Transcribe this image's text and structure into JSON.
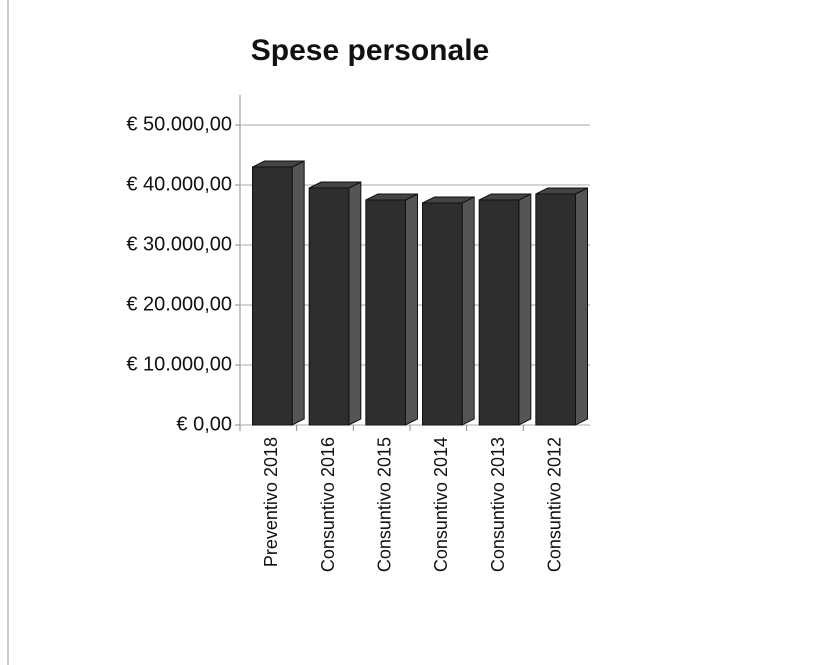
{
  "chart_data": {
    "type": "bar3d",
    "title": "Spese personale",
    "categories": [
      "Preventivo 2018",
      "Consuntivo 2016",
      "Consuntivo 2015",
      "Consuntivo 2014",
      "Consuntivo 2013",
      "Consuntivo 2012"
    ],
    "values": [
      43000,
      39500,
      37500,
      37000,
      37500,
      38500
    ],
    "color": "#2e2e2e",
    "ylim": [
      0,
      50000
    ],
    "yticks": [
      {
        "value": 0,
        "label": "€ 0,00"
      },
      {
        "value": 10000,
        "label": "€ 10.000,00"
      },
      {
        "value": 20000,
        "label": "€ 20.000,00"
      },
      {
        "value": 30000,
        "label": "€ 30.000,00"
      },
      {
        "value": 40000,
        "label": "€ 40.000,00"
      },
      {
        "value": 50000,
        "label": "€ 50.000,00"
      }
    ],
    "grid": true
  }
}
